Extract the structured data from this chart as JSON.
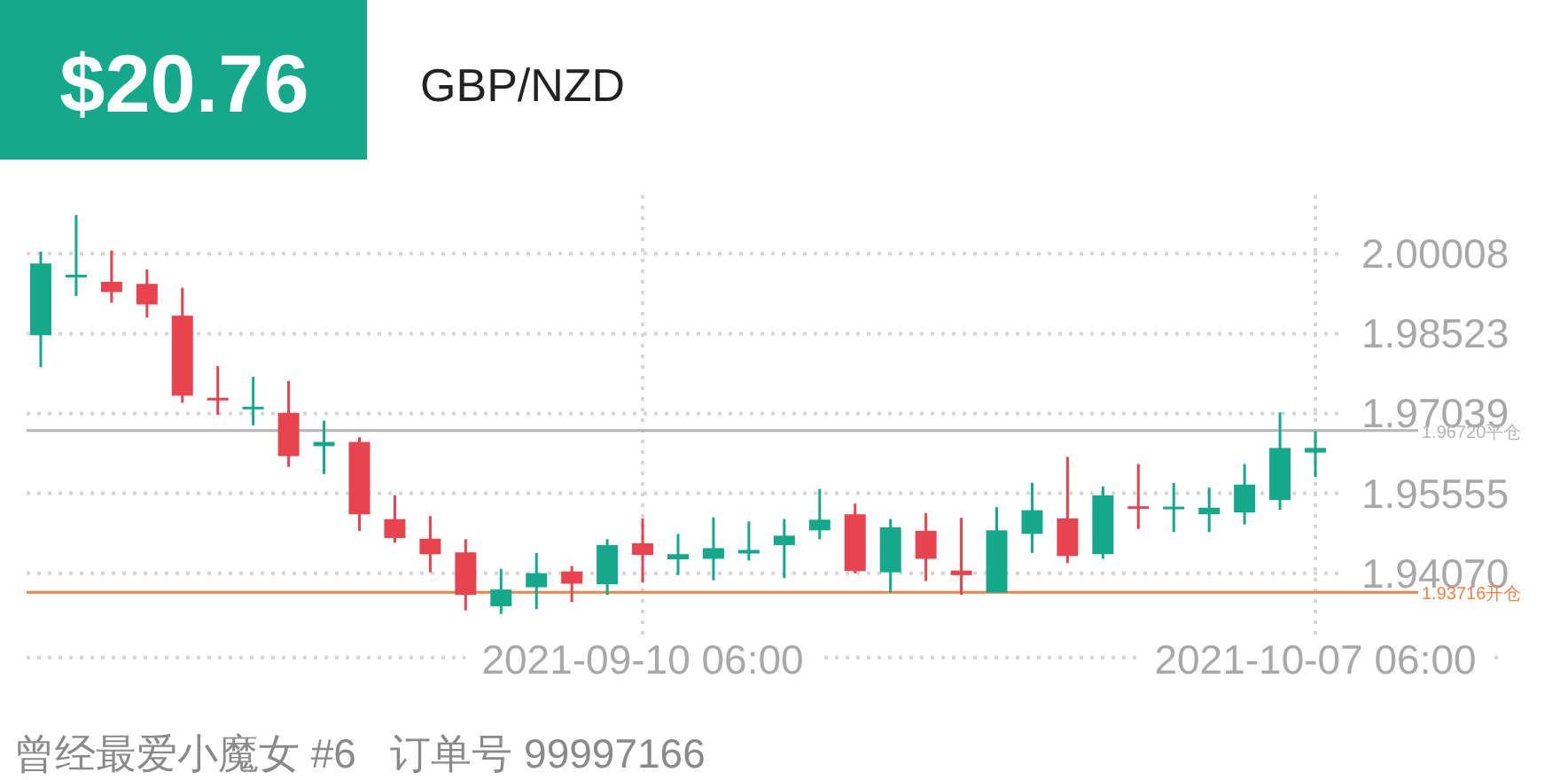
{
  "chart_data": {
    "type": "candlestick",
    "title": "$20.76",
    "subtitle": "GBP/NZD",
    "categories": [
      null,
      null,
      null,
      null,
      null,
      null,
      null,
      null,
      null,
      null,
      null,
      null,
      null,
      null,
      null,
      null,
      null,
      "2021-09-10 06:00",
      null,
      null,
      null,
      null,
      null,
      null,
      null,
      null,
      null,
      null,
      null,
      null,
      null,
      null,
      null,
      null,
      null,
      null,
      "2021-10-07 06:00"
    ],
    "ohlc": [
      [
        1.98494,
        2.00047,
        1.97899,
        1.99826
      ],
      [
        1.99585,
        2.00729,
        1.99221,
        1.99618
      ],
      [
        1.99486,
        2.00067,
        1.99099,
        1.99297
      ],
      [
        1.99448,
        1.99717,
        1.98821,
        1.99066
      ],
      [
        1.98857,
        1.99376,
        1.97237,
        1.9737
      ],
      [
        1.97331,
        1.97919,
        1.97016,
        1.97298
      ],
      [
        1.97132,
        1.9772,
        1.96818,
        1.97165
      ],
      [
        1.97049,
        1.97644,
        1.96047,
        1.96246
      ],
      [
        1.96431,
        1.96907,
        1.95915,
        1.9651
      ],
      [
        1.9651,
        1.96597,
        1.94857,
        1.95165
      ],
      [
        1.95075,
        1.95518,
        1.94636,
        1.94725
      ],
      [
        1.94712,
        1.95132,
        1.94087,
        1.94424
      ],
      [
        1.94457,
        1.94702,
        1.93379,
        1.93667
      ],
      [
        1.93456,
        1.9415,
        1.93313,
        1.93767
      ],
      [
        1.93809,
        1.94447,
        1.93403,
        1.9407
      ],
      [
        1.94103,
        1.94202,
        1.93535,
        1.93875
      ],
      [
        1.93865,
        1.94702,
        1.93667,
        1.94593
      ],
      [
        1.94626,
        1.95089,
        1.93898,
        1.94411
      ],
      [
        1.94328,
        1.94801,
        1.94037,
        1.94424
      ],
      [
        1.94338,
        1.95109,
        1.93938,
        1.94536
      ],
      [
        1.94437,
        1.95033,
        1.94305,
        1.94503
      ],
      [
        1.94593,
        1.95076,
        1.93981,
        1.94768
      ],
      [
        1.94867,
        1.95637,
        1.94702,
        1.95065
      ],
      [
        1.95165,
        1.95363,
        1.94067,
        1.9411
      ],
      [
        1.94087,
        1.95076,
        1.9371,
        1.94923
      ],
      [
        1.94857,
        1.95188,
        1.93924,
        1.94338
      ],
      [
        1.9412,
        1.95099,
        1.93667,
        1.94034
      ],
      [
        1.9371,
        1.95297,
        1.9371,
        1.94867
      ],
      [
        1.94801,
        1.9575,
        1.94447,
        1.95241
      ],
      [
        1.95089,
        1.96232,
        1.94259,
        1.94391
      ],
      [
        1.94424,
        1.95683,
        1.94338,
        1.95518
      ],
      [
        1.95314,
        1.961,
        1.94893,
        1.95281
      ],
      [
        1.95297,
        1.9575,
        1.94834,
        1.95307
      ],
      [
        1.95165,
        1.95661,
        1.94834,
        1.95287
      ],
      [
        1.95198,
        1.961,
        1.94976,
        1.95717
      ],
      [
        1.95429,
        1.97059,
        1.95247,
        1.96398
      ],
      [
        1.96312,
        1.96706,
        1.95859,
        1.96398
      ]
    ],
    "colors": [
      "#14a98a",
      "#14a98a",
      "#e8434f",
      "#e8434f",
      "#e8434f",
      "#e8434f",
      "#14a98a",
      "#e8434f",
      "#14a98a",
      "#e8434f",
      "#e8434f",
      "#e8434f",
      "#e8434f",
      "#14a98a",
      "#14a98a",
      "#e8434f",
      "#14a98a",
      "#e8434f",
      "#14a98a",
      "#14a98a",
      "#14a98a",
      "#14a98a",
      "#14a98a",
      "#e8434f",
      "#14a98a",
      "#e8434f",
      "#e8434f",
      "#14a98a",
      "#14a98a",
      "#e8434f",
      "#14a98a",
      "#e8434f",
      "#14a98a",
      "#14a98a",
      "#14a98a",
      "#14a98a",
      "#14a98a"
    ],
    "ylim": [
      1.925,
      2.011
    ],
    "yticks": [
      {
        "value": 2.00008,
        "label": "2.00008"
      },
      {
        "value": 1.98523,
        "label": "1.98523"
      },
      {
        "value": 1.97039,
        "label": "1.97039"
      },
      {
        "value": 1.95555,
        "label": "1.95555"
      },
      {
        "value": 1.9407,
        "label": "1.94070"
      }
    ],
    "grid": true,
    "ref_lines": [
      {
        "axis": "y",
        "value": 1.9672,
        "label": "1.96720平仓",
        "color": "#b5b5b5"
      },
      {
        "axis": "y",
        "value": 1.93716,
        "label": "1.93716开仓",
        "color": "#f0834a"
      }
    ],
    "annotations": [
      "曾经最爱小魔女 #6   订单号 99997166"
    ]
  }
}
